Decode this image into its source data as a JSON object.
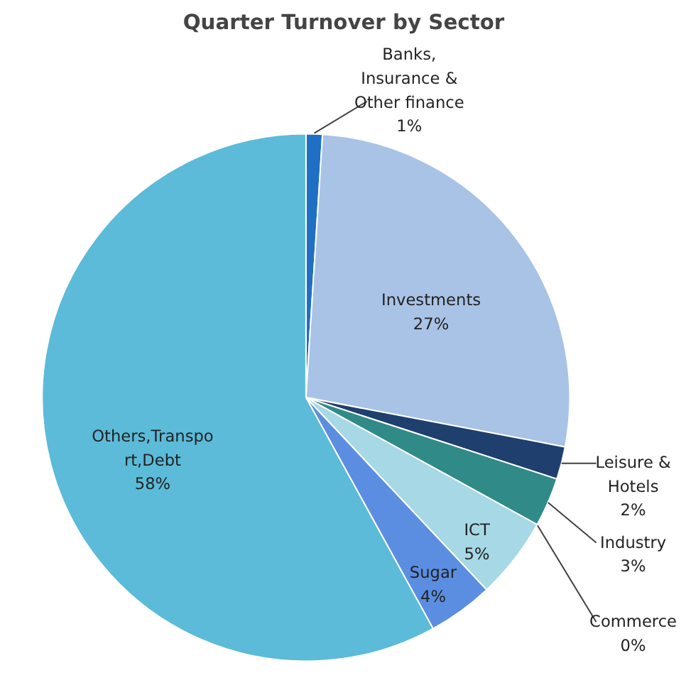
{
  "chart_data": {
    "type": "pie",
    "title": "Quarter Turnover by Sector",
    "categories": [
      "Banks, Insurance & Other finance",
      "Investments",
      "Leisure & Hotels",
      "Industry",
      "Commerce",
      "ICT",
      "Sugar",
      "Others,Transport,Debt"
    ],
    "values": [
      1,
      27,
      2,
      3,
      0,
      5,
      4,
      58
    ],
    "value_labels": [
      "1%",
      "27%",
      "2%",
      "3%",
      "0%",
      "5%",
      "4%",
      "58%"
    ],
    "colors": [
      "#1f6fc4",
      "#a9c3e6",
      "#1f3f6e",
      "#2f8a88",
      "#4aa6b8",
      "#a6d8e6",
      "#5b8ee0",
      "#5bbbd8"
    ]
  }
}
